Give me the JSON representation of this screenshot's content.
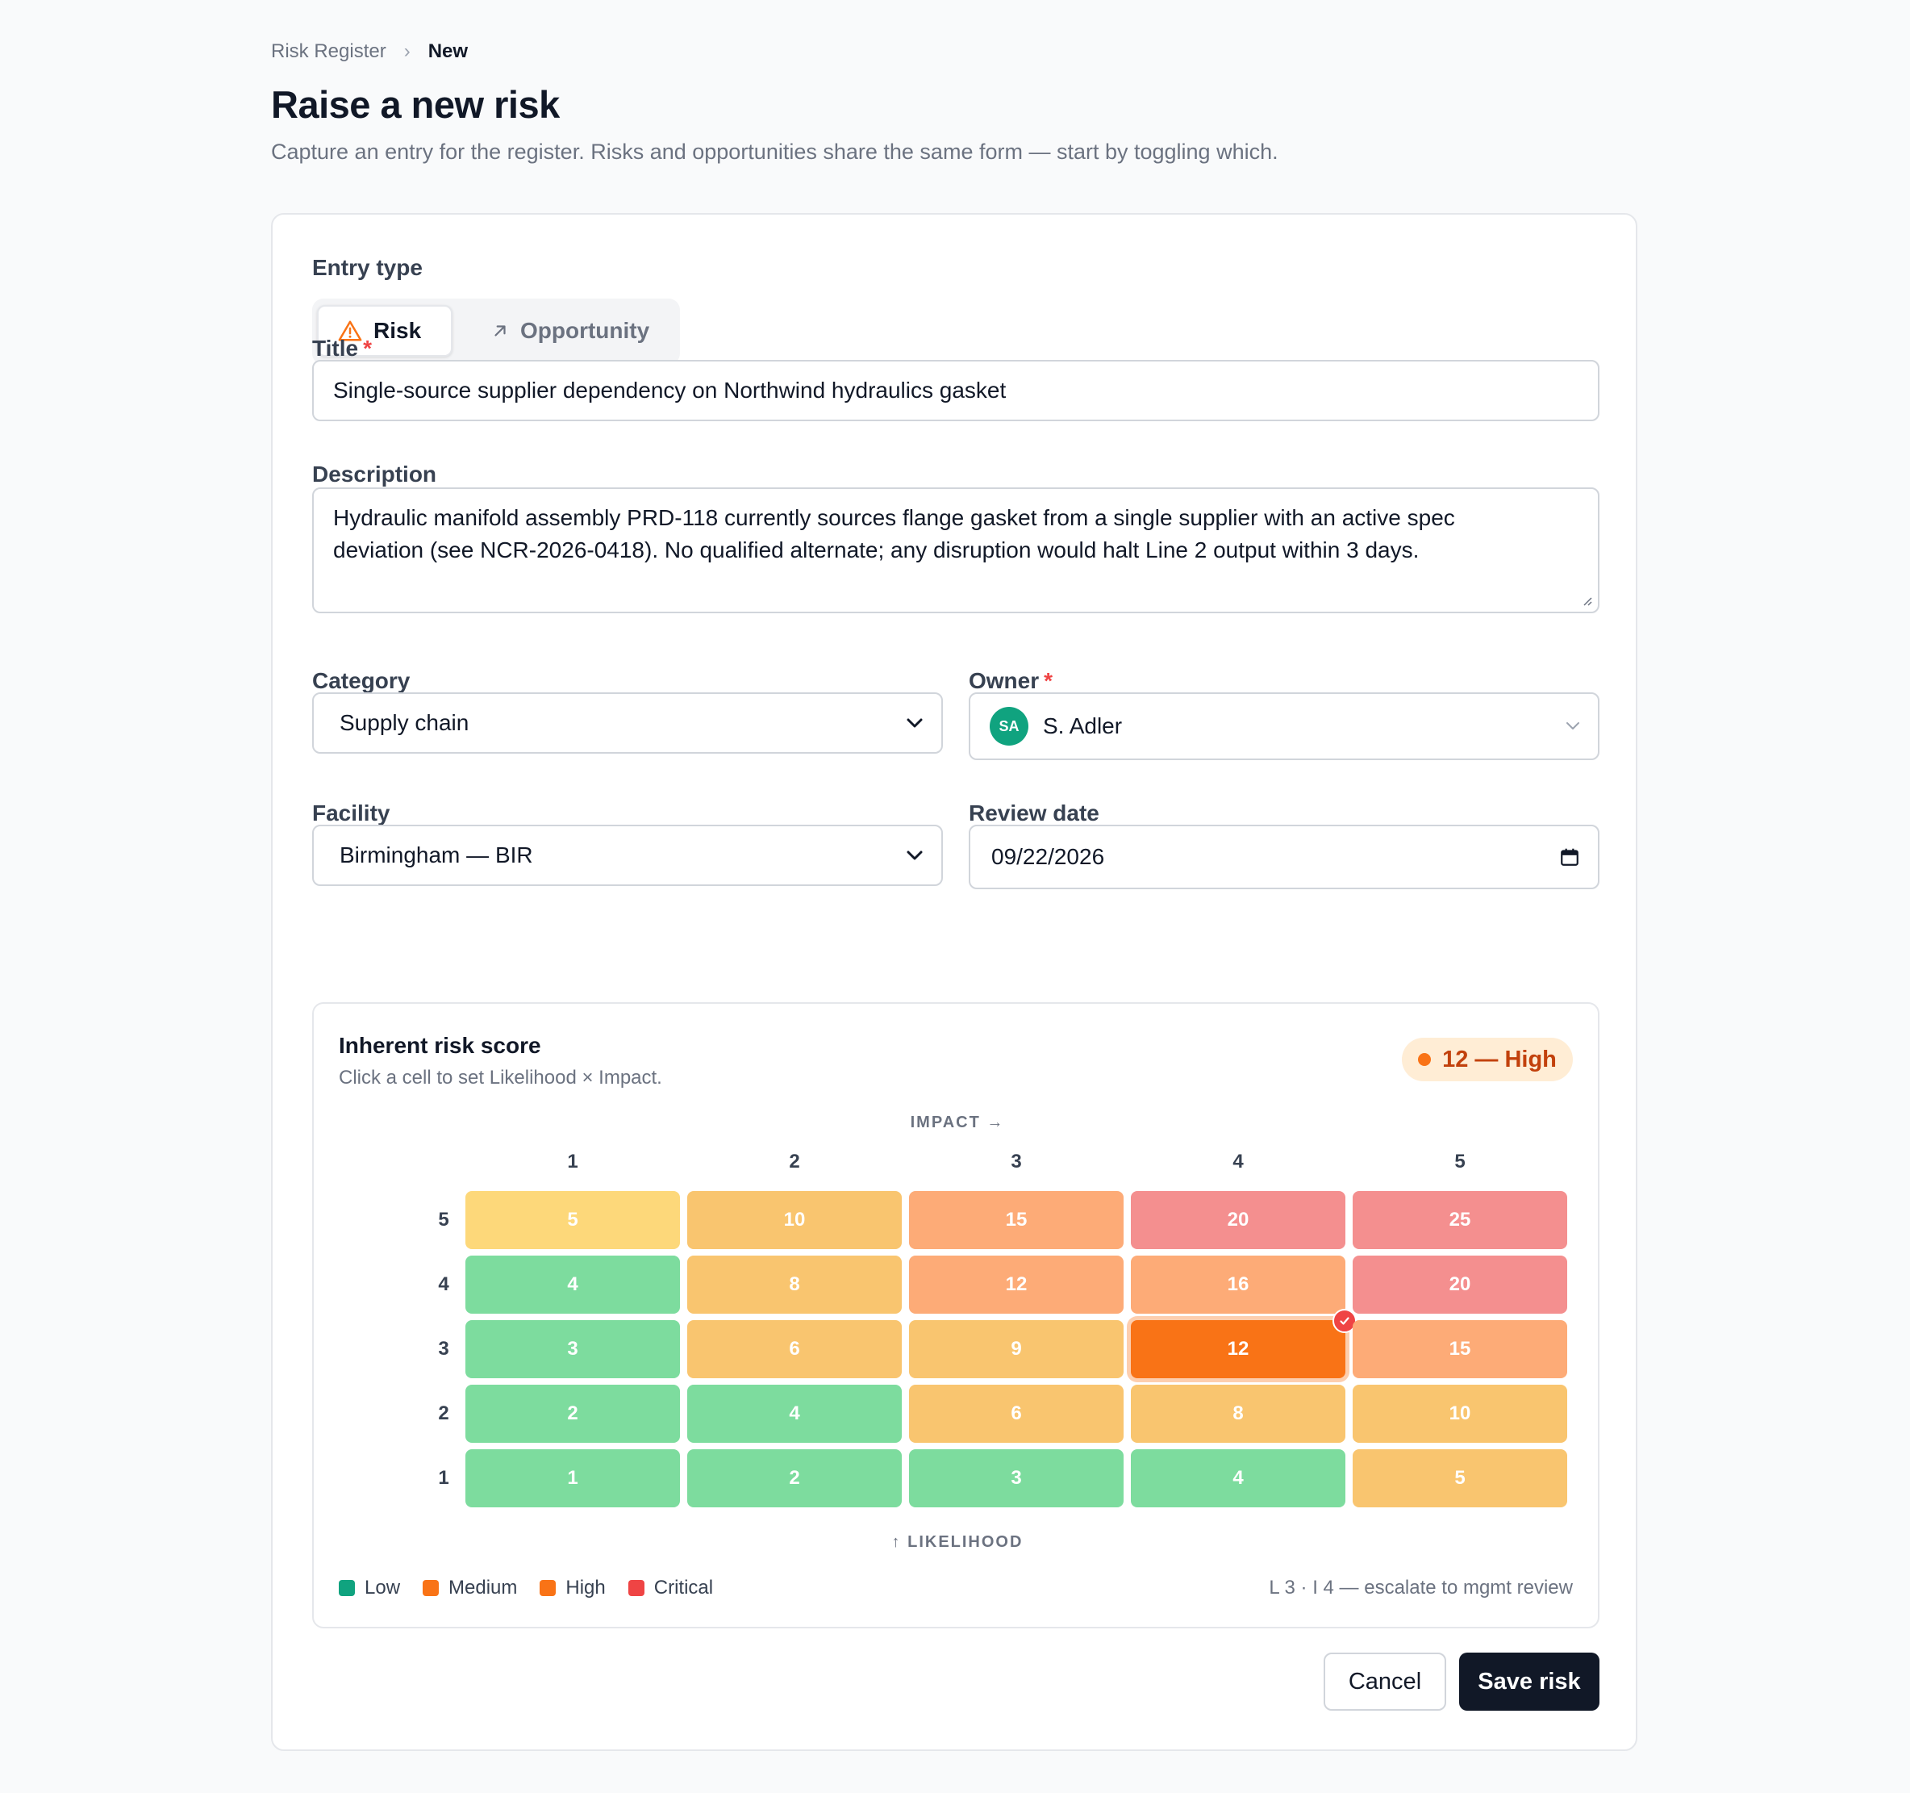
{
  "breadcrumb": {
    "parent": "Risk Register",
    "separator": "›",
    "current": "New"
  },
  "header": {
    "title": "Raise a new risk",
    "subtitle": "Capture an entry for the register. Risks and opportunities share the same form — start by toggling which."
  },
  "form": {
    "entry_type": {
      "label": "Entry type",
      "options": [
        "Risk",
        "Opportunity"
      ],
      "selected": "Risk"
    },
    "title_field": {
      "label": "Title",
      "required_mark": "*",
      "value": "Single-source supplier dependency on Northwind hydraulics gasket"
    },
    "description": {
      "label": "Description",
      "value": "Hydraulic manifold assembly PRD-118 currently sources flange gasket from a single supplier with an active spec deviation (see NCR-2026-0418). No qualified alternate; any disruption would halt Line 2 output within 3 days."
    },
    "category": {
      "label": "Category",
      "value": "Supply chain"
    },
    "owner": {
      "label": "Owner",
      "required_mark": "*",
      "initials": "SA",
      "value": "S. Adler"
    },
    "facility": {
      "label": "Facility",
      "value": "Birmingham — BIR"
    },
    "review_date": {
      "label": "Review date",
      "value": "09/22/2026"
    }
  },
  "risk_matrix": {
    "title": "Inherent risk score",
    "subtitle": "Click a cell to set Likelihood × Impact.",
    "badge": "12 — High",
    "axis_top": "IMPACT →",
    "axis_bottom": "↑ LIKELIHOOD",
    "columns": [
      "1",
      "2",
      "3",
      "4",
      "5"
    ],
    "rows": [
      {
        "label": "5",
        "cells": [
          "5",
          "10",
          "15",
          "20",
          "25"
        ]
      },
      {
        "label": "4",
        "cells": [
          "4",
          "8",
          "12",
          "16",
          "20"
        ]
      },
      {
        "label": "3",
        "cells": [
          "3",
          "6",
          "9",
          "12",
          "15"
        ]
      },
      {
        "label": "2",
        "cells": [
          "2",
          "4",
          "6",
          "8",
          "10"
        ]
      },
      {
        "label": "1",
        "cells": [
          "1",
          "2",
          "3",
          "4",
          "5"
        ]
      }
    ],
    "selected": {
      "likelihood": 3,
      "impact": 4,
      "score": 12
    },
    "legend": [
      {
        "label": "Low",
        "color": "#10a37f"
      },
      {
        "label": "Medium",
        "color": "#f97316"
      },
      {
        "label": "High",
        "color": "#f97316"
      },
      {
        "label": "Critical",
        "color": "#ef4444"
      }
    ],
    "note": "L 3 · I 4 — escalate to mgmt review"
  },
  "actions": {
    "cancel": "Cancel",
    "save": "Save risk"
  }
}
